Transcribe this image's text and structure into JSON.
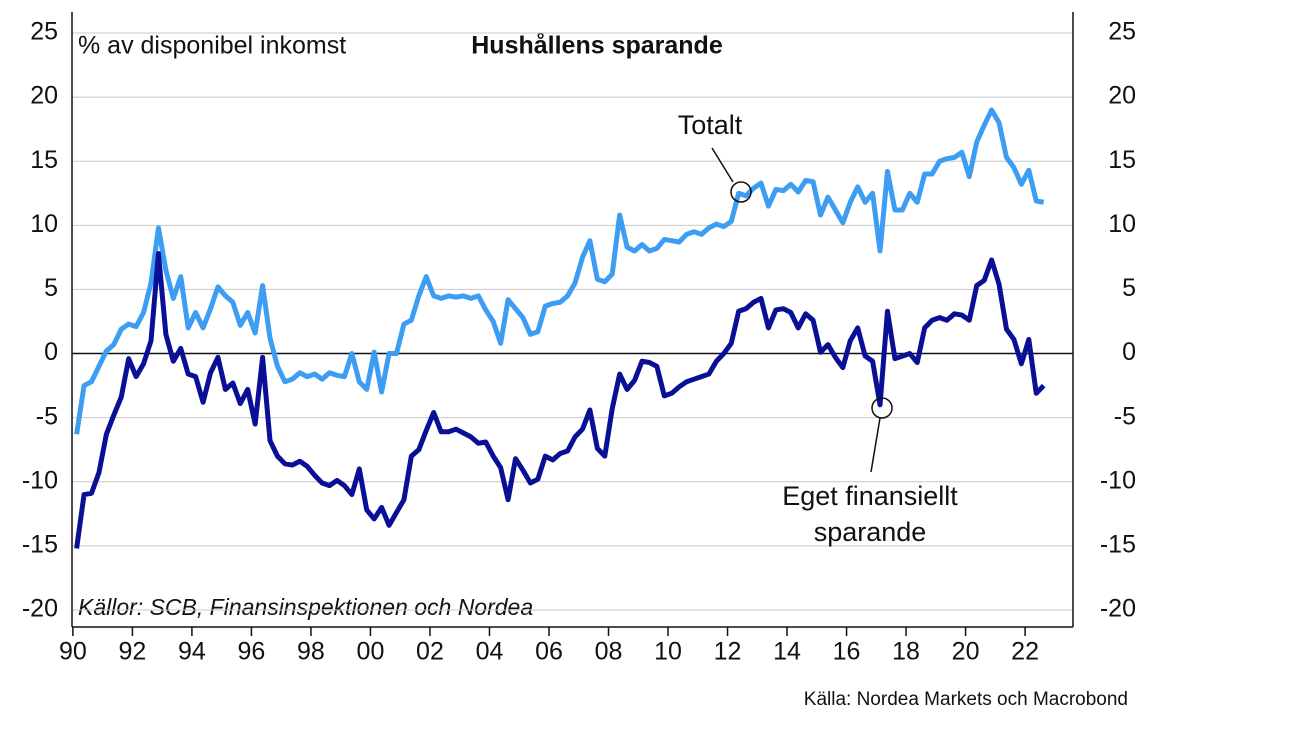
{
  "chart_data": {
    "type": "line",
    "title": "Hushållens sparande",
    "y_label": "% av disponibel inkomst",
    "note": "Källor: SCB, Finansinspektionen och Nordea",
    "source": "Källa: Nordea Markets och Macrobond",
    "x": [
      1990.125,
      1990.375,
      1990.625,
      1990.875,
      1991.125,
      1991.375,
      1991.625,
      1991.875,
      1992.125,
      1992.375,
      1992.625,
      1992.875,
      1993.125,
      1993.375,
      1993.625,
      1993.875,
      1994.125,
      1994.375,
      1994.625,
      1994.875,
      1995.125,
      1995.375,
      1995.625,
      1995.875,
      1996.125,
      1996.375,
      1996.625,
      1996.875,
      1997.125,
      1997.375,
      1997.625,
      1997.875,
      1998.125,
      1998.375,
      1998.625,
      1998.875,
      1999.125,
      1999.375,
      1999.625,
      1999.875,
      2000.125,
      2000.375,
      2000.625,
      2000.875,
      2001.125,
      2001.375,
      2001.625,
      2001.875,
      2002.125,
      2002.375,
      2002.625,
      2002.875,
      2003.125,
      2003.375,
      2003.625,
      2003.875,
      2004.125,
      2004.375,
      2004.625,
      2004.875,
      2005.125,
      2005.375,
      2005.625,
      2005.875,
      2006.125,
      2006.375,
      2006.625,
      2006.875,
      2007.125,
      2007.375,
      2007.625,
      2007.875,
      2008.125,
      2008.375,
      2008.625,
      2008.875,
      2009.125,
      2009.375,
      2009.625,
      2009.875,
      2010.125,
      2010.375,
      2010.625,
      2010.875,
      2011.125,
      2011.375,
      2011.625,
      2011.875,
      2012.125,
      2012.375,
      2012.625,
      2012.875,
      2013.125,
      2013.375,
      2013.625,
      2013.875,
      2014.125,
      2014.375,
      2014.625,
      2014.875,
      2015.125,
      2015.375,
      2015.625,
      2015.875,
      2016.125,
      2016.375,
      2016.625,
      2016.875,
      2017.125,
      2017.375,
      2017.625,
      2017.875,
      2018.125,
      2018.375,
      2018.625,
      2018.875,
      2019.125,
      2019.375,
      2019.625,
      2019.875,
      2020.125,
      2020.375,
      2020.625,
      2020.875,
      2021.125,
      2021.375,
      2021.625,
      2021.875,
      2022.125,
      2022.375,
      2022.625
    ],
    "series": [
      {
        "name": "Totalt",
        "color": "#3d9df3",
        "values": [
          -6.3,
          -2.5,
          -2.2,
          -1,
          0.2,
          0.7,
          1.9,
          2.3,
          2.1,
          3.2,
          5.5,
          9.8,
          6.5,
          4.3,
          6,
          2,
          3.2,
          2,
          3.5,
          5.2,
          4.5,
          4,
          2.2,
          3.2,
          1.6,
          5.3,
          1.2,
          -1,
          -2.2,
          -2,
          -1.5,
          -1.8,
          -1.6,
          -2,
          -1.5,
          -1.7,
          -1.8,
          0,
          -2.2,
          -2.8,
          0.1,
          -3,
          0,
          0,
          2.3,
          2.6,
          4.5,
          6,
          4.5,
          4.3,
          4.5,
          4.4,
          4.5,
          4.3,
          4.5,
          3.4,
          2.5,
          0.8,
          4.2,
          3.5,
          2.8,
          1.5,
          1.7,
          3.7,
          3.9,
          4,
          4.5,
          5.5,
          7.5,
          8.8,
          5.8,
          5.6,
          6.2,
          10.8,
          8.3,
          8,
          8.5,
          8,
          8.2,
          8.9,
          8.8,
          8.7,
          9.3,
          9.5,
          9.3,
          9.8,
          10.1,
          9.9,
          10.3,
          12.5,
          12.3,
          12.9,
          13.3,
          11.5,
          12.8,
          12.7,
          13.2,
          12.6,
          13.5,
          13.4,
          10.8,
          12.2,
          11.2,
          10.2,
          11.8,
          13,
          11.8,
          12.5,
          8,
          14.2,
          11.2,
          11.2,
          12.5,
          11.8,
          14,
          14,
          15,
          15.2,
          15.3,
          15.7,
          13.8,
          16.5,
          17.8,
          19,
          18,
          15.3,
          14.5,
          13.2,
          14.3,
          11.9,
          11.8
        ]
      },
      {
        "name": "Eget finansiellt sparande",
        "color": "#0a1096",
        "values": [
          -15.2,
          -11,
          -10.9,
          -9.3,
          -6.3,
          -4.8,
          -3.4,
          -0.4,
          -1.8,
          -0.8,
          1,
          7.8,
          1.5,
          -0.6,
          0.4,
          -1.6,
          -1.8,
          -3.8,
          -1.5,
          -0.3,
          -2.8,
          -2.3,
          -3.9,
          -2.8,
          -5.5,
          -0.3,
          -6.8,
          -8,
          -8.6,
          -8.7,
          -8.4,
          -8.8,
          -9.5,
          -10.1,
          -10.3,
          -9.9,
          -10.3,
          -11,
          -9,
          -12.2,
          -12.9,
          -12,
          -13.4,
          -12.4,
          -11.4,
          -8,
          -7.5,
          -6,
          -4.6,
          -6.1,
          -6.1,
          -5.9,
          -6.2,
          -6.5,
          -7,
          -6.9,
          -8,
          -8.9,
          -11.4,
          -8.2,
          -9.1,
          -10.1,
          -9.8,
          -8,
          -8.3,
          -7.8,
          -7.6,
          -6.5,
          -5.9,
          -4.4,
          -7.4,
          -8,
          -4.3,
          -1.6,
          -2.8,
          -2.1,
          -0.6,
          -0.7,
          -1,
          -3.3,
          -3.1,
          -2.6,
          -2.2,
          -2,
          -1.8,
          -1.6,
          -0.6,
          0,
          0.8,
          3.3,
          3.5,
          4,
          4.3,
          2,
          3.4,
          3.5,
          3.2,
          2,
          3.1,
          2.6,
          0.1,
          0.7,
          -0.3,
          -1.1,
          1,
          2,
          -0.2,
          -0.6,
          -4,
          3.3,
          -0.4,
          -0.2,
          0,
          -0.7,
          2,
          2.6,
          2.8,
          2.6,
          3.1,
          3,
          2.6,
          5.3,
          5.7,
          7.3,
          5.4,
          1.9,
          1.1,
          -0.8,
          1.1,
          -3.1,
          -2.5
        ]
      }
    ],
    "xlim": [
      1989.97,
      2023.61
    ],
    "xticks": [
      {
        "value": 1990,
        "label": "90"
      },
      {
        "value": 1992,
        "label": "92"
      },
      {
        "value": 1994,
        "label": "94"
      },
      {
        "value": 1996,
        "label": "96"
      },
      {
        "value": 1998,
        "label": "98"
      },
      {
        "value": 2000,
        "label": "00"
      },
      {
        "value": 2002,
        "label": "02"
      },
      {
        "value": 2004,
        "label": "04"
      },
      {
        "value": 2006,
        "label": "06"
      },
      {
        "value": 2008,
        "label": "08"
      },
      {
        "value": 2010,
        "label": "10"
      },
      {
        "value": 2012,
        "label": "12"
      },
      {
        "value": 2014,
        "label": "14"
      },
      {
        "value": 2016,
        "label": "16"
      },
      {
        "value": 2018,
        "label": "18"
      },
      {
        "value": 2020,
        "label": "20"
      },
      {
        "value": 2022,
        "label": "22"
      }
    ],
    "ylim": [
      -21.33,
      26.64
    ],
    "yticks": [
      -20,
      -15,
      -10,
      -5,
      0,
      5,
      10,
      15,
      20,
      25
    ],
    "grid": true
  }
}
